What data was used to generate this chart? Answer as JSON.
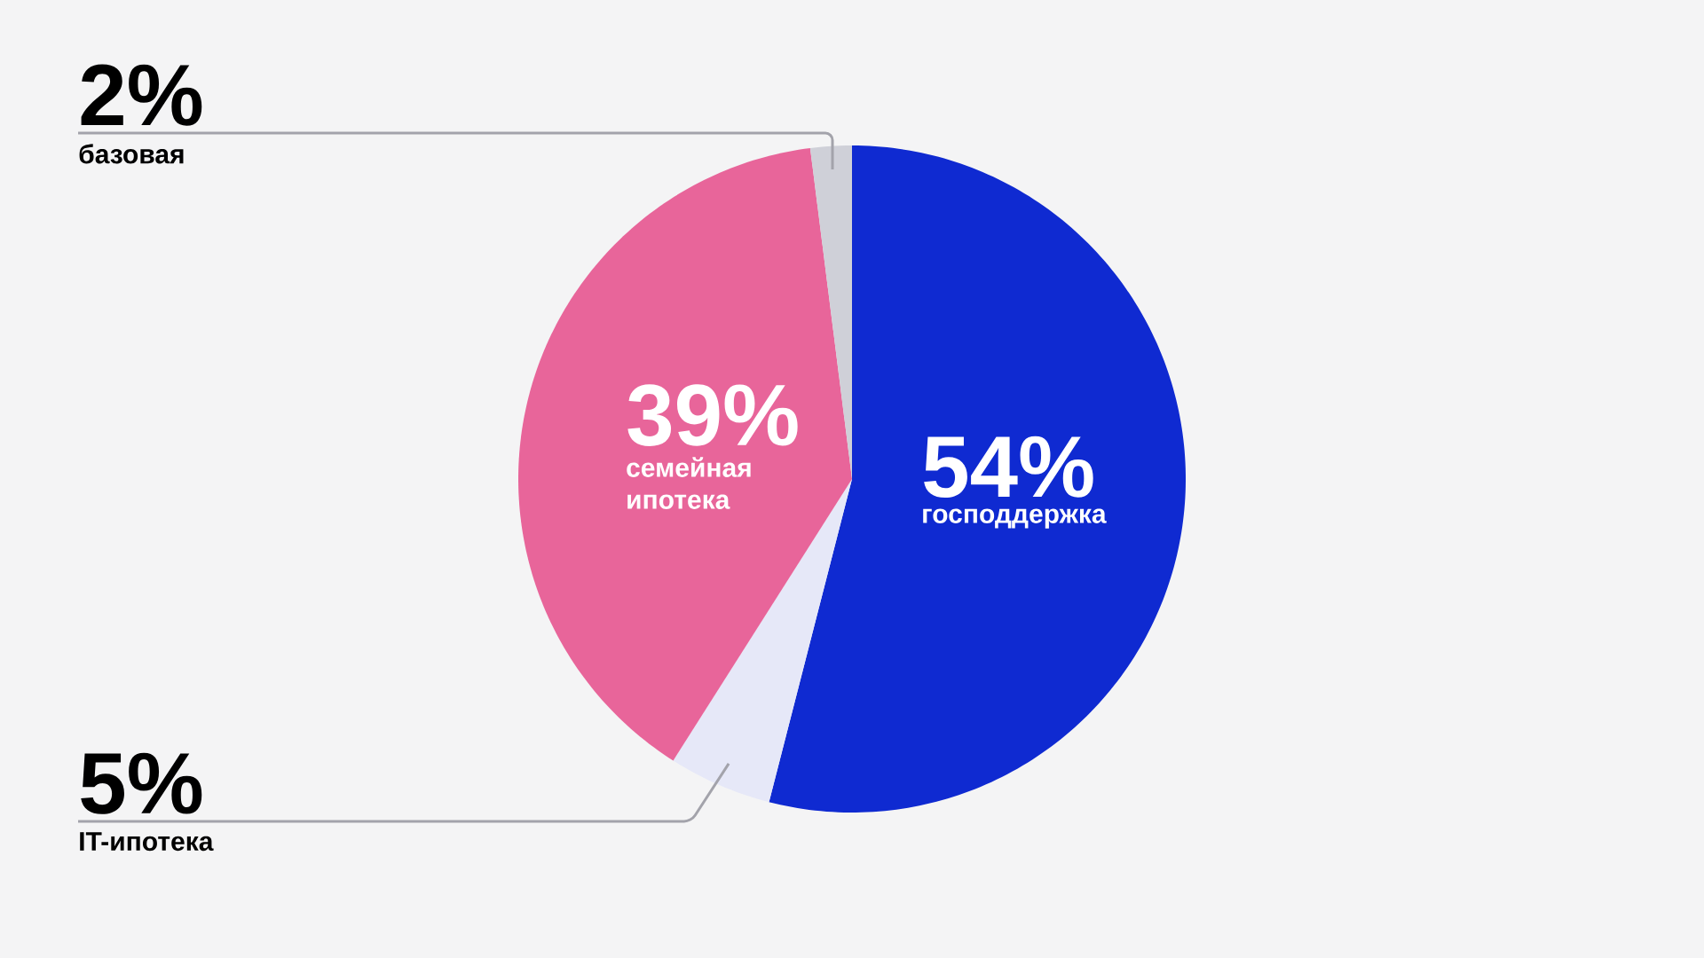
{
  "chart_data": {
    "type": "pie",
    "categories": [
      "господдержка",
      "IT-ипотека",
      "семейная ипотека",
      "базовая"
    ],
    "values": [
      54,
      5,
      39,
      2
    ],
    "value_labels": [
      "54%",
      "5%",
      "39%",
      "2%"
    ],
    "colors": [
      "#0f2ad1",
      "#e6e8f8",
      "#e8659a",
      "#cfd0d8"
    ]
  }
}
